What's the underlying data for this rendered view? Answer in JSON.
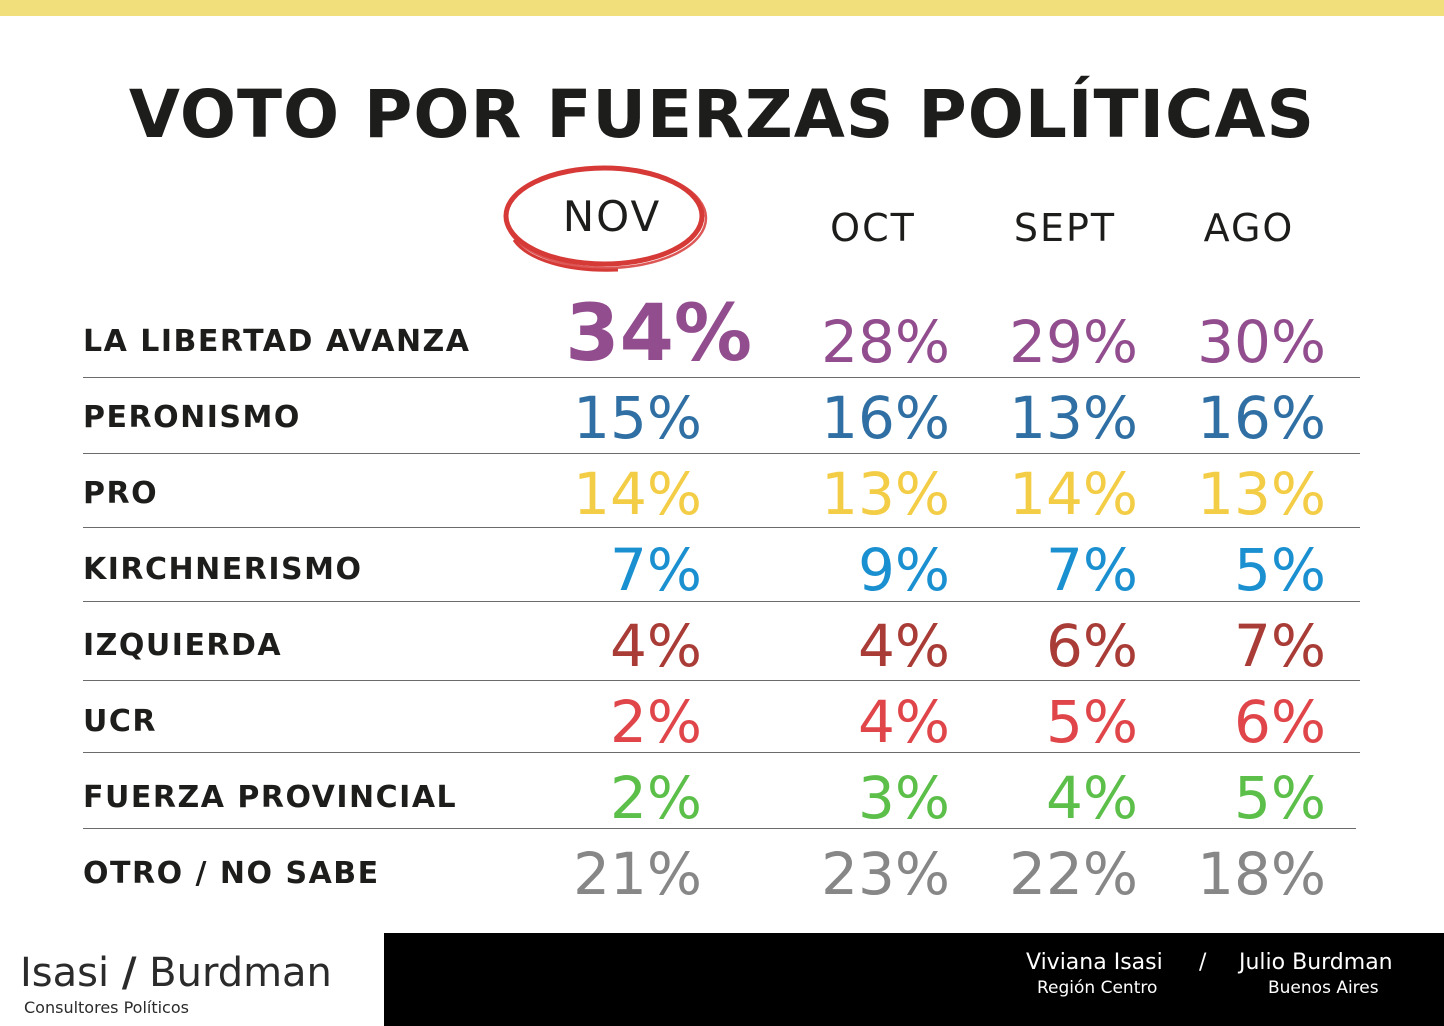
{
  "title": "VOTO POR FUERZAS POLÍTICAS",
  "chart_data": {
    "type": "table",
    "title": "VOTO POR FUERZAS POLÍTICAS",
    "columns": [
      "NOV",
      "OCT",
      "SEPT",
      "AGO"
    ],
    "highlighted_column": "NOV",
    "rows": [
      {
        "label": "LA LIBERTAD AVANZA",
        "color": "#924d8e",
        "values": [
          "34%",
          "28%",
          "29%",
          "30%"
        ]
      },
      {
        "label": "PERONISMO",
        "color": "#2f6fa3",
        "values": [
          "15%",
          "16%",
          "13%",
          "16%"
        ]
      },
      {
        "label": "PRO",
        "color": "#f4cd46",
        "values": [
          "14%",
          "13%",
          "14%",
          "13%"
        ]
      },
      {
        "label": "KIRCHNERISMO",
        "color": "#1b90d0",
        "values": [
          "7%",
          "9%",
          "7%",
          "5%"
        ]
      },
      {
        "label": "IZQUIERDA",
        "color": "#a93c36",
        "values": [
          "4%",
          "4%",
          "6%",
          "7%"
        ]
      },
      {
        "label": "UCR",
        "color": "#e0454a",
        "values": [
          "2%",
          "4%",
          "5%",
          "6%"
        ]
      },
      {
        "label": "FUERZA PROVINCIAL",
        "color": "#5cbf4a",
        "values": [
          "2%",
          "3%",
          "4%",
          "5%"
        ]
      },
      {
        "label": "OTRO / NO SABE",
        "color": "#878787",
        "values": [
          "21%",
          "23%",
          "22%",
          "18%"
        ]
      }
    ]
  },
  "highlight_color": "#d63a37",
  "footer": {
    "logo_left": "Isasi",
    "logo_slash": "/",
    "logo_right": "Burdman",
    "logo_sub": "Consultores Políticos",
    "person1_name": "Viviana Isasi",
    "person1_region": "Región Centro",
    "separator": "/",
    "person2_name": "Julio Burdman",
    "person2_region": "Buenos Aires"
  }
}
